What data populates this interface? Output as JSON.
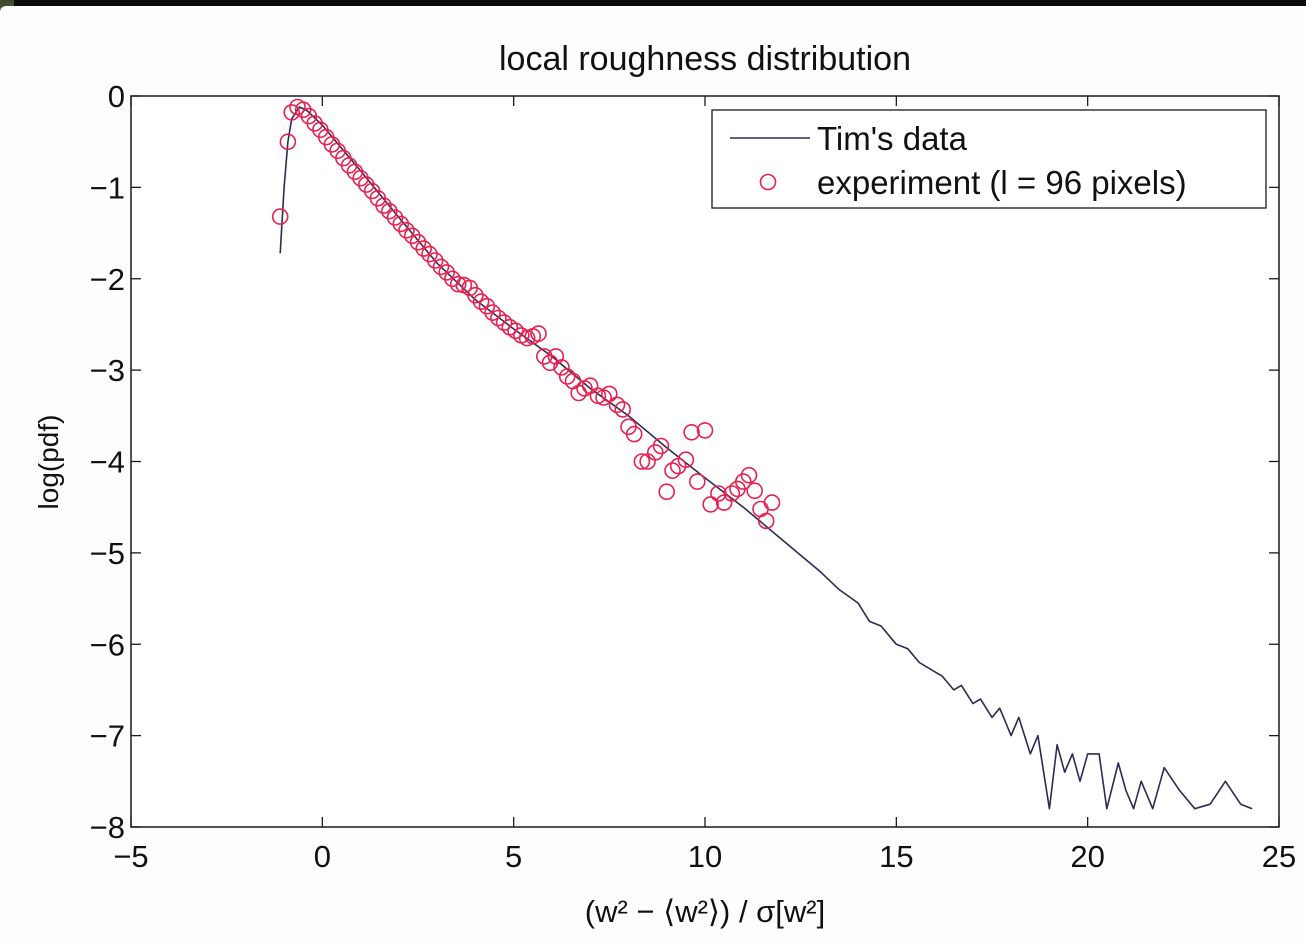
{
  "chart_data": {
    "type": "scatter",
    "title": "local roughness distribution",
    "xlabel": "(w² − ⟨w²⟩) / σ[w²]",
    "ylabel": "log(pdf)",
    "xlim": [
      -5,
      25
    ],
    "ylim": [
      -8,
      0
    ],
    "xticks": [
      -5,
      0,
      5,
      10,
      15,
      20,
      25
    ],
    "yticks": [
      0,
      -1,
      -2,
      -3,
      -4,
      -5,
      -6,
      -7,
      -8
    ],
    "xtick_labels": [
      "−5",
      "0",
      "5",
      "10",
      "15",
      "20",
      "25"
    ],
    "ytick_labels": [
      "0",
      "−1",
      "−2",
      "−3",
      "−4",
      "−5",
      "−6",
      "−7",
      "−8"
    ],
    "grid": false,
    "legend_position": "top-right",
    "series": [
      {
        "name": "Tim's data",
        "kind": "line",
        "color": "#2b2b55",
        "x": [
          -1.1,
          -1.0,
          -0.9,
          -0.8,
          -0.6,
          -0.4,
          0.0,
          1.0,
          2.0,
          3.0,
          4.0,
          5.0,
          6.0,
          7.0,
          8.0,
          9.0,
          10.0,
          11.0,
          12.0,
          13.0,
          13.5,
          14.0,
          14.3,
          14.6,
          15.0,
          15.3,
          15.6,
          16.0,
          16.2,
          16.5,
          16.7,
          17.0,
          17.2,
          17.5,
          17.7,
          18.0,
          18.2,
          18.5,
          18.7,
          19.0,
          19.2,
          19.4,
          19.6,
          19.8,
          20.0,
          20.3,
          20.5,
          20.8,
          21.0,
          21.2,
          21.4,
          21.7,
          22.0,
          22.4,
          22.8,
          23.2,
          23.6,
          24.0,
          24.3
        ],
        "y": [
          -1.72,
          -1.0,
          -0.5,
          -0.25,
          -0.12,
          -0.16,
          -0.32,
          -0.82,
          -1.33,
          -1.83,
          -2.23,
          -2.55,
          -2.85,
          -3.2,
          -3.5,
          -3.85,
          -4.18,
          -4.5,
          -4.85,
          -5.2,
          -5.4,
          -5.55,
          -5.75,
          -5.8,
          -6.0,
          -6.05,
          -6.2,
          -6.3,
          -6.35,
          -6.5,
          -6.45,
          -6.65,
          -6.6,
          -6.8,
          -6.7,
          -7.0,
          -6.8,
          -7.2,
          -7.0,
          -7.8,
          -7.1,
          -7.4,
          -7.2,
          -7.5,
          -7.2,
          -7.2,
          -7.8,
          -7.3,
          -7.6,
          -7.8,
          -7.5,
          -7.8,
          -7.35,
          -7.6,
          -7.8,
          -7.75,
          -7.5,
          -7.75,
          -7.8
        ]
      },
      {
        "name": "experiment (l = 96 pixels)",
        "kind": "markers",
        "marker": "open-circle",
        "color": "#e8214f",
        "x": [
          -1.1,
          -0.9,
          -0.8,
          -0.65,
          -0.5,
          -0.35,
          -0.2,
          -0.05,
          0.1,
          0.25,
          0.4,
          0.55,
          0.7,
          0.85,
          1.0,
          1.15,
          1.3,
          1.45,
          1.6,
          1.75,
          1.9,
          2.05,
          2.2,
          2.35,
          2.5,
          2.65,
          2.8,
          2.95,
          3.1,
          3.25,
          3.4,
          3.55,
          3.7,
          3.85,
          4.0,
          4.15,
          4.3,
          4.45,
          4.6,
          4.75,
          4.9,
          5.05,
          5.2,
          5.35,
          5.5,
          5.65,
          5.8,
          5.95,
          6.1,
          6.25,
          6.4,
          6.55,
          6.7,
          6.85,
          7.0,
          7.2,
          7.35,
          7.5,
          7.7,
          7.85,
          8.0,
          8.15,
          8.35,
          8.5,
          8.7,
          8.85,
          9.0,
          9.15,
          9.3,
          9.5,
          9.65,
          9.8,
          10.0,
          10.15,
          10.35,
          10.5,
          10.7,
          10.85,
          11.0,
          11.15,
          11.3,
          11.45,
          11.6,
          11.75
        ],
        "y": [
          -1.32,
          -0.5,
          -0.18,
          -0.12,
          -0.15,
          -0.22,
          -0.3,
          -0.37,
          -0.45,
          -0.53,
          -0.6,
          -0.68,
          -0.76,
          -0.83,
          -0.9,
          -0.97,
          -1.04,
          -1.12,
          -1.2,
          -1.26,
          -1.33,
          -1.4,
          -1.47,
          -1.53,
          -1.6,
          -1.67,
          -1.73,
          -1.8,
          -1.87,
          -1.93,
          -2.0,
          -2.06,
          -2.07,
          -2.1,
          -2.18,
          -2.25,
          -2.3,
          -2.37,
          -2.43,
          -2.48,
          -2.53,
          -2.57,
          -2.62,
          -2.65,
          -2.63,
          -2.6,
          -2.85,
          -2.92,
          -2.85,
          -2.97,
          -3.07,
          -3.12,
          -3.25,
          -3.2,
          -3.17,
          -3.28,
          -3.3,
          -3.26,
          -3.38,
          -3.43,
          -3.62,
          -3.7,
          -4.0,
          -4.0,
          -3.9,
          -3.83,
          -4.33,
          -4.1,
          -4.05,
          -3.98,
          -3.68,
          -4.22,
          -3.66,
          -4.47,
          -4.35,
          -4.45,
          -4.35,
          -4.3,
          -4.22,
          -4.15,
          -4.32,
          -4.52,
          -4.65,
          -4.45
        ]
      }
    ]
  }
}
